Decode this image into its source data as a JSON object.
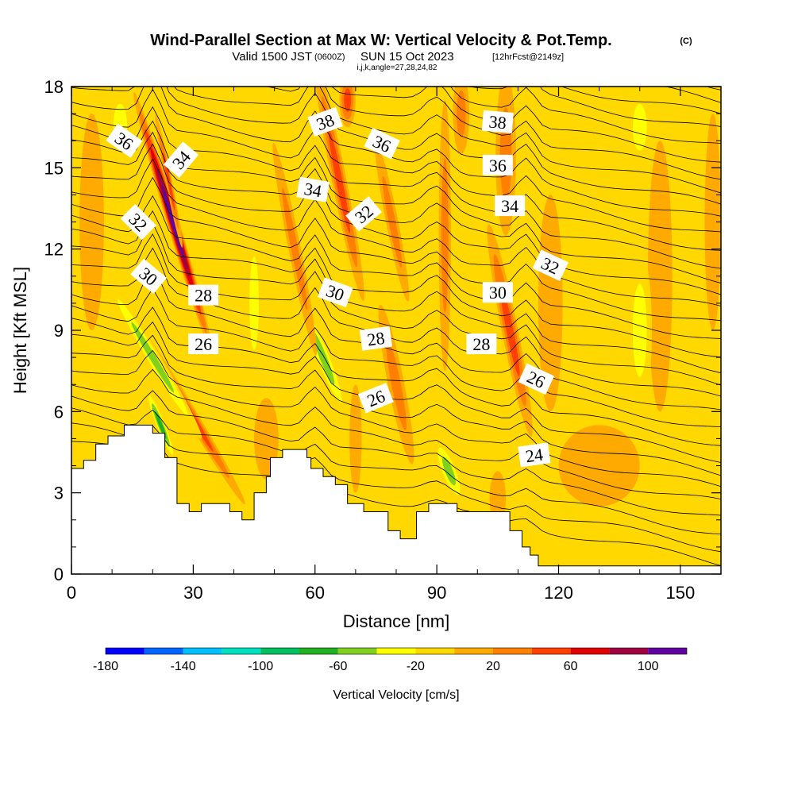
{
  "chart_data": {
    "type": "heatmap",
    "title": "Wind-Parallel Section at Max W: Vertical Velocity & Pot.Temp.",
    "title_mark": "(C)",
    "subtitle_valid": "Valid 1500 JST",
    "subtitle_utc": "(0600Z)",
    "subtitle_date": "SUN 15 Oct 2023",
    "subtitle_fcst": "[12hrFcst@2149z]",
    "subtitle_grid": "i,j,k,angle=27,28,24,82",
    "xlabel": "Distance [nm]",
    "ylabel": "Height [Kft MSL]",
    "xlim": [
      0,
      160
    ],
    "ylim": [
      0,
      18
    ],
    "x_ticks": [
      "0",
      "30",
      "60",
      "90",
      "120",
      "150"
    ],
    "y_ticks": [
      "0",
      "3",
      "6",
      "9",
      "12",
      "15",
      "18"
    ],
    "x_tick_values": [
      0,
      30,
      60,
      90,
      120,
      150
    ],
    "y_tick_values": [
      0,
      3,
      6,
      9,
      12,
      15,
      18
    ],
    "colorbar": {
      "label": "Vertical Velocity [cm/s]",
      "tick_labels": [
        "-180",
        "-140",
        "-100",
        "-60",
        "-20",
        "20",
        "60",
        "100"
      ],
      "tick_values": [
        -180,
        -140,
        -100,
        -60,
        -20,
        20,
        60,
        100
      ],
      "levels": [
        -180,
        -160,
        -140,
        -120,
        -100,
        -80,
        -60,
        -40,
        -20,
        0,
        20,
        40,
        60,
        80,
        100,
        120
      ],
      "colors": [
        "#0000ff",
        "#0066ff",
        "#00c0ff",
        "#00e0c0",
        "#00c060",
        "#20b020",
        "#80d020",
        "#ffff00",
        "#ffd800",
        "#ffaa00",
        "#ff8000",
        "#ff4000",
        "#e00000",
        "#a00040",
        "#6000a0"
      ]
    },
    "background_color": "#ffd800",
    "terrain": [
      [
        0,
        3.9
      ],
      [
        3,
        3.9
      ],
      [
        3,
        4.2
      ],
      [
        6,
        4.2
      ],
      [
        6,
        4.8
      ],
      [
        9,
        4.8
      ],
      [
        9,
        5.1
      ],
      [
        13,
        5.1
      ],
      [
        13,
        5.5
      ],
      [
        20,
        5.5
      ],
      [
        20,
        5.2
      ],
      [
        23,
        5.2
      ],
      [
        23,
        4.3
      ],
      [
        26,
        4.3
      ],
      [
        26,
        2.6
      ],
      [
        29,
        2.6
      ],
      [
        29,
        2.3
      ],
      [
        32,
        2.3
      ],
      [
        32,
        2.6
      ],
      [
        39,
        2.6
      ],
      [
        39,
        2.3
      ],
      [
        42,
        2.3
      ],
      [
        42,
        2.0
      ],
      [
        45,
        2.0
      ],
      [
        45,
        3.0
      ],
      [
        48,
        3.0
      ],
      [
        48,
        3.6
      ],
      [
        49,
        3.6
      ],
      [
        49,
        4.3
      ],
      [
        52,
        4.3
      ],
      [
        52,
        4.6
      ],
      [
        58,
        4.6
      ],
      [
        58,
        4.3
      ],
      [
        59,
        4.3
      ],
      [
        59,
        3.9
      ],
      [
        62,
        3.9
      ],
      [
        62,
        3.6
      ],
      [
        65,
        3.6
      ],
      [
        65,
        3.3
      ],
      [
        68,
        3.3
      ],
      [
        68,
        2.6
      ],
      [
        72,
        2.6
      ],
      [
        72,
        2.3
      ],
      [
        78,
        2.3
      ],
      [
        78,
        1.6
      ],
      [
        81,
        1.6
      ],
      [
        81,
        1.3
      ],
      [
        85,
        1.3
      ],
      [
        85,
        2.3
      ],
      [
        88,
        2.3
      ],
      [
        88,
        2.6
      ],
      [
        95,
        2.6
      ],
      [
        95,
        2.3
      ],
      [
        108,
        2.3
      ],
      [
        108,
        1.6
      ],
      [
        111,
        1.6
      ],
      [
        111,
        1.0
      ],
      [
        113,
        1.0
      ],
      [
        113,
        0.7
      ],
      [
        115,
        0.7
      ],
      [
        115,
        0.3
      ],
      [
        160,
        0.3
      ]
    ],
    "velocity_features": [
      {
        "x": 25,
        "y": 13.0,
        "sx": 1.5,
        "sy": 5.0,
        "tilt": -0.15,
        "value": 110
      },
      {
        "x": 24,
        "y": 14.5,
        "sx": 0.8,
        "sy": 2.5,
        "tilt": -0.1,
        "value": 60
      },
      {
        "x": 29,
        "y": 6.0,
        "sx": 1.5,
        "sy": 4.0,
        "tilt": -0.3,
        "value": 50
      },
      {
        "x": 20,
        "y": 8.0,
        "sx": 1.8,
        "sy": 3.5,
        "tilt": -0.3,
        "value": -60
      },
      {
        "x": 22,
        "y": 5.5,
        "sx": 1.2,
        "sy": 1.5,
        "tilt": -0.2,
        "value": -70
      },
      {
        "x": 66,
        "y": 14.5,
        "sx": 1.8,
        "sy": 4.5,
        "tilt": -0.1,
        "value": 60
      },
      {
        "x": 68,
        "y": 17.5,
        "sx": 2.0,
        "sy": 1.0,
        "tilt": 0.0,
        "value": 55
      },
      {
        "x": 62,
        "y": 8.0,
        "sx": 2.0,
        "sy": 2.5,
        "tilt": -0.2,
        "value": -55
      },
      {
        "x": 55,
        "y": 12.0,
        "sx": 1.5,
        "sy": 4.0,
        "tilt": -0.1,
        "value": 25
      },
      {
        "x": 80,
        "y": 7.0,
        "sx": 2.0,
        "sy": 3.0,
        "tilt": -0.1,
        "value": 35
      },
      {
        "x": 79,
        "y": 13.0,
        "sx": 1.5,
        "sy": 3.0,
        "tilt": -0.1,
        "value": 30
      },
      {
        "x": 93,
        "y": 3.8,
        "sx": 2.2,
        "sy": 1.3,
        "tilt": -0.2,
        "value": -55
      },
      {
        "x": 92,
        "y": 12.5,
        "sx": 1.5,
        "sy": 5.0,
        "tilt": 0.0,
        "value": 25
      },
      {
        "x": 96,
        "y": 17.0,
        "sx": 2.0,
        "sy": 1.5,
        "tilt": 0.0,
        "value": 40
      },
      {
        "x": 108,
        "y": 9.0,
        "sx": 2.0,
        "sy": 4.0,
        "tilt": -0.1,
        "value": 45
      },
      {
        "x": 107,
        "y": 15.5,
        "sx": 2.5,
        "sy": 3.0,
        "tilt": 0.0,
        "value": 25
      },
      {
        "x": 118,
        "y": 10.0,
        "sx": 3.0,
        "sy": 4.0,
        "tilt": 0.0,
        "value": 15
      },
      {
        "x": 130,
        "y": 4.0,
        "sx": 10.0,
        "sy": 1.5,
        "tilt": 0.0,
        "value": 15
      },
      {
        "x": 145,
        "y": 11.0,
        "sx": 3.0,
        "sy": 5.0,
        "tilt": 0.0,
        "value": 12
      },
      {
        "x": 158,
        "y": 13.0,
        "sx": 2.0,
        "sy": 4.0,
        "tilt": 0.0,
        "value": 15
      },
      {
        "x": 5,
        "y": 13.0,
        "sx": 3.0,
        "sy": 4.0,
        "tilt": 0.0,
        "value": 12
      },
      {
        "x": 48,
        "y": 5.0,
        "sx": 3.0,
        "sy": 1.5,
        "tilt": 0.0,
        "value": 15
      },
      {
        "x": 70,
        "y": 5.0,
        "sx": 1.5,
        "sy": 2.0,
        "tilt": 0.0,
        "value": 15
      },
      {
        "x": 105,
        "y": 2.8,
        "sx": 2.0,
        "sy": 1.0,
        "tilt": 0.0,
        "value": 10
      },
      {
        "x": 140,
        "y": 9.0,
        "sx": 3.0,
        "sy": 3.0,
        "tilt": 0.0,
        "value": -25
      },
      {
        "x": 12,
        "y": 16.5,
        "sx": 3.0,
        "sy": 1.5,
        "tilt": 0.0,
        "value": -25
      },
      {
        "x": 140,
        "y": 16.5,
        "sx": 3.0,
        "sy": 1.5,
        "tilt": 0.0,
        "value": -28
      },
      {
        "x": 45,
        "y": 10.0,
        "sx": 2.0,
        "sy": 3.0,
        "tilt": 0.0,
        "value": -25
      }
    ],
    "contour_labels": [
      {
        "text": "36",
        "x": 13,
        "y": 16.0,
        "angle": 35
      },
      {
        "text": "34",
        "x": 27,
        "y": 15.3,
        "angle": -50
      },
      {
        "text": "32",
        "x": 16.5,
        "y": 13.0,
        "angle": 45
      },
      {
        "text": "30",
        "x": 19,
        "y": 11.0,
        "angle": 40
      },
      {
        "text": "28",
        "x": 32.5,
        "y": 10.3,
        "angle": 0
      },
      {
        "text": "26",
        "x": 32.5,
        "y": 8.5,
        "angle": 0
      },
      {
        "text": "38",
        "x": 62.5,
        "y": 16.7,
        "angle": -20
      },
      {
        "text": "36",
        "x": 76.5,
        "y": 15.9,
        "angle": 25
      },
      {
        "text": "34",
        "x": 59.5,
        "y": 14.2,
        "angle": 10
      },
      {
        "text": "32",
        "x": 72,
        "y": 13.3,
        "angle": -40
      },
      {
        "text": "30",
        "x": 65,
        "y": 10.4,
        "angle": 20
      },
      {
        "text": "28",
        "x": 75,
        "y": 8.7,
        "angle": -8
      },
      {
        "text": "26",
        "x": 75,
        "y": 6.5,
        "angle": -22
      },
      {
        "text": "38",
        "x": 105,
        "y": 16.7,
        "angle": 5
      },
      {
        "text": "36",
        "x": 105,
        "y": 15.1,
        "angle": 0
      },
      {
        "text": "34",
        "x": 108,
        "y": 13.6,
        "angle": 0
      },
      {
        "text": "32",
        "x": 118,
        "y": 11.4,
        "angle": 25
      },
      {
        "text": "30",
        "x": 105,
        "y": 10.4,
        "angle": 0
      },
      {
        "text": "28",
        "x": 101,
        "y": 8.5,
        "angle": 0
      },
      {
        "text": "26",
        "x": 114.5,
        "y": 7.2,
        "angle": 25
      },
      {
        "text": "24",
        "x": 114,
        "y": 4.4,
        "angle": -8
      }
    ]
  }
}
